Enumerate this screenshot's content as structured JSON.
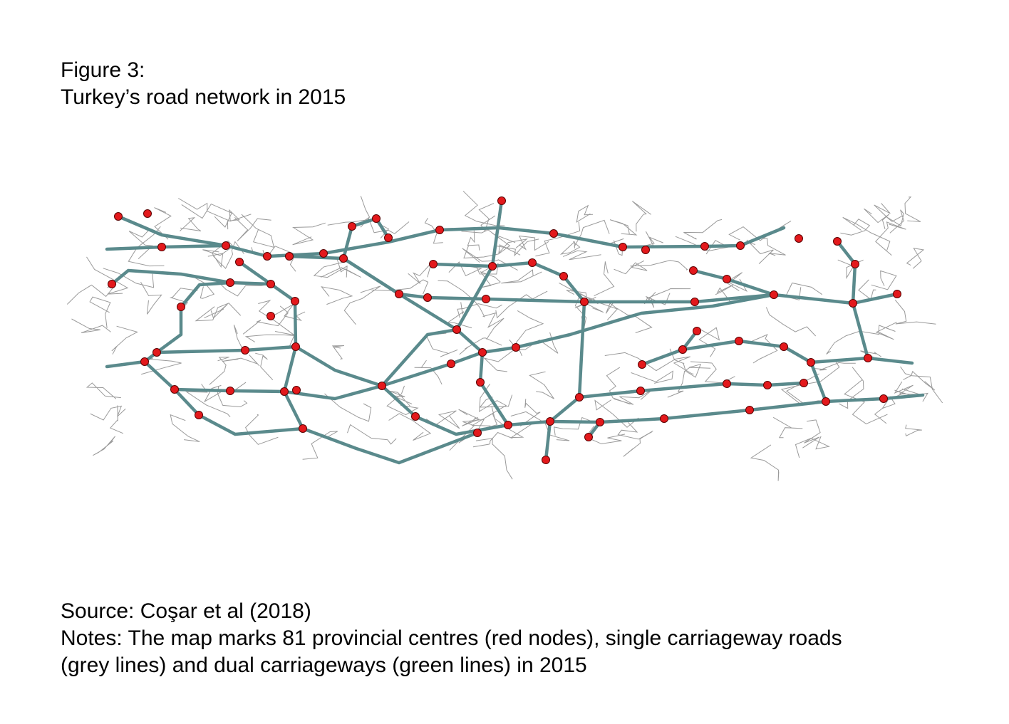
{
  "figure": {
    "label": "Figure 3:",
    "title": "Turkey’s road network in 2015"
  },
  "source": "Source: Coşar et al (2018)",
  "notes": [
    "Notes: The map marks 81 provincial centres (red nodes), single carriageway roads",
    "(grey lines) and dual carriageways (green lines) in 2015"
  ]
}
